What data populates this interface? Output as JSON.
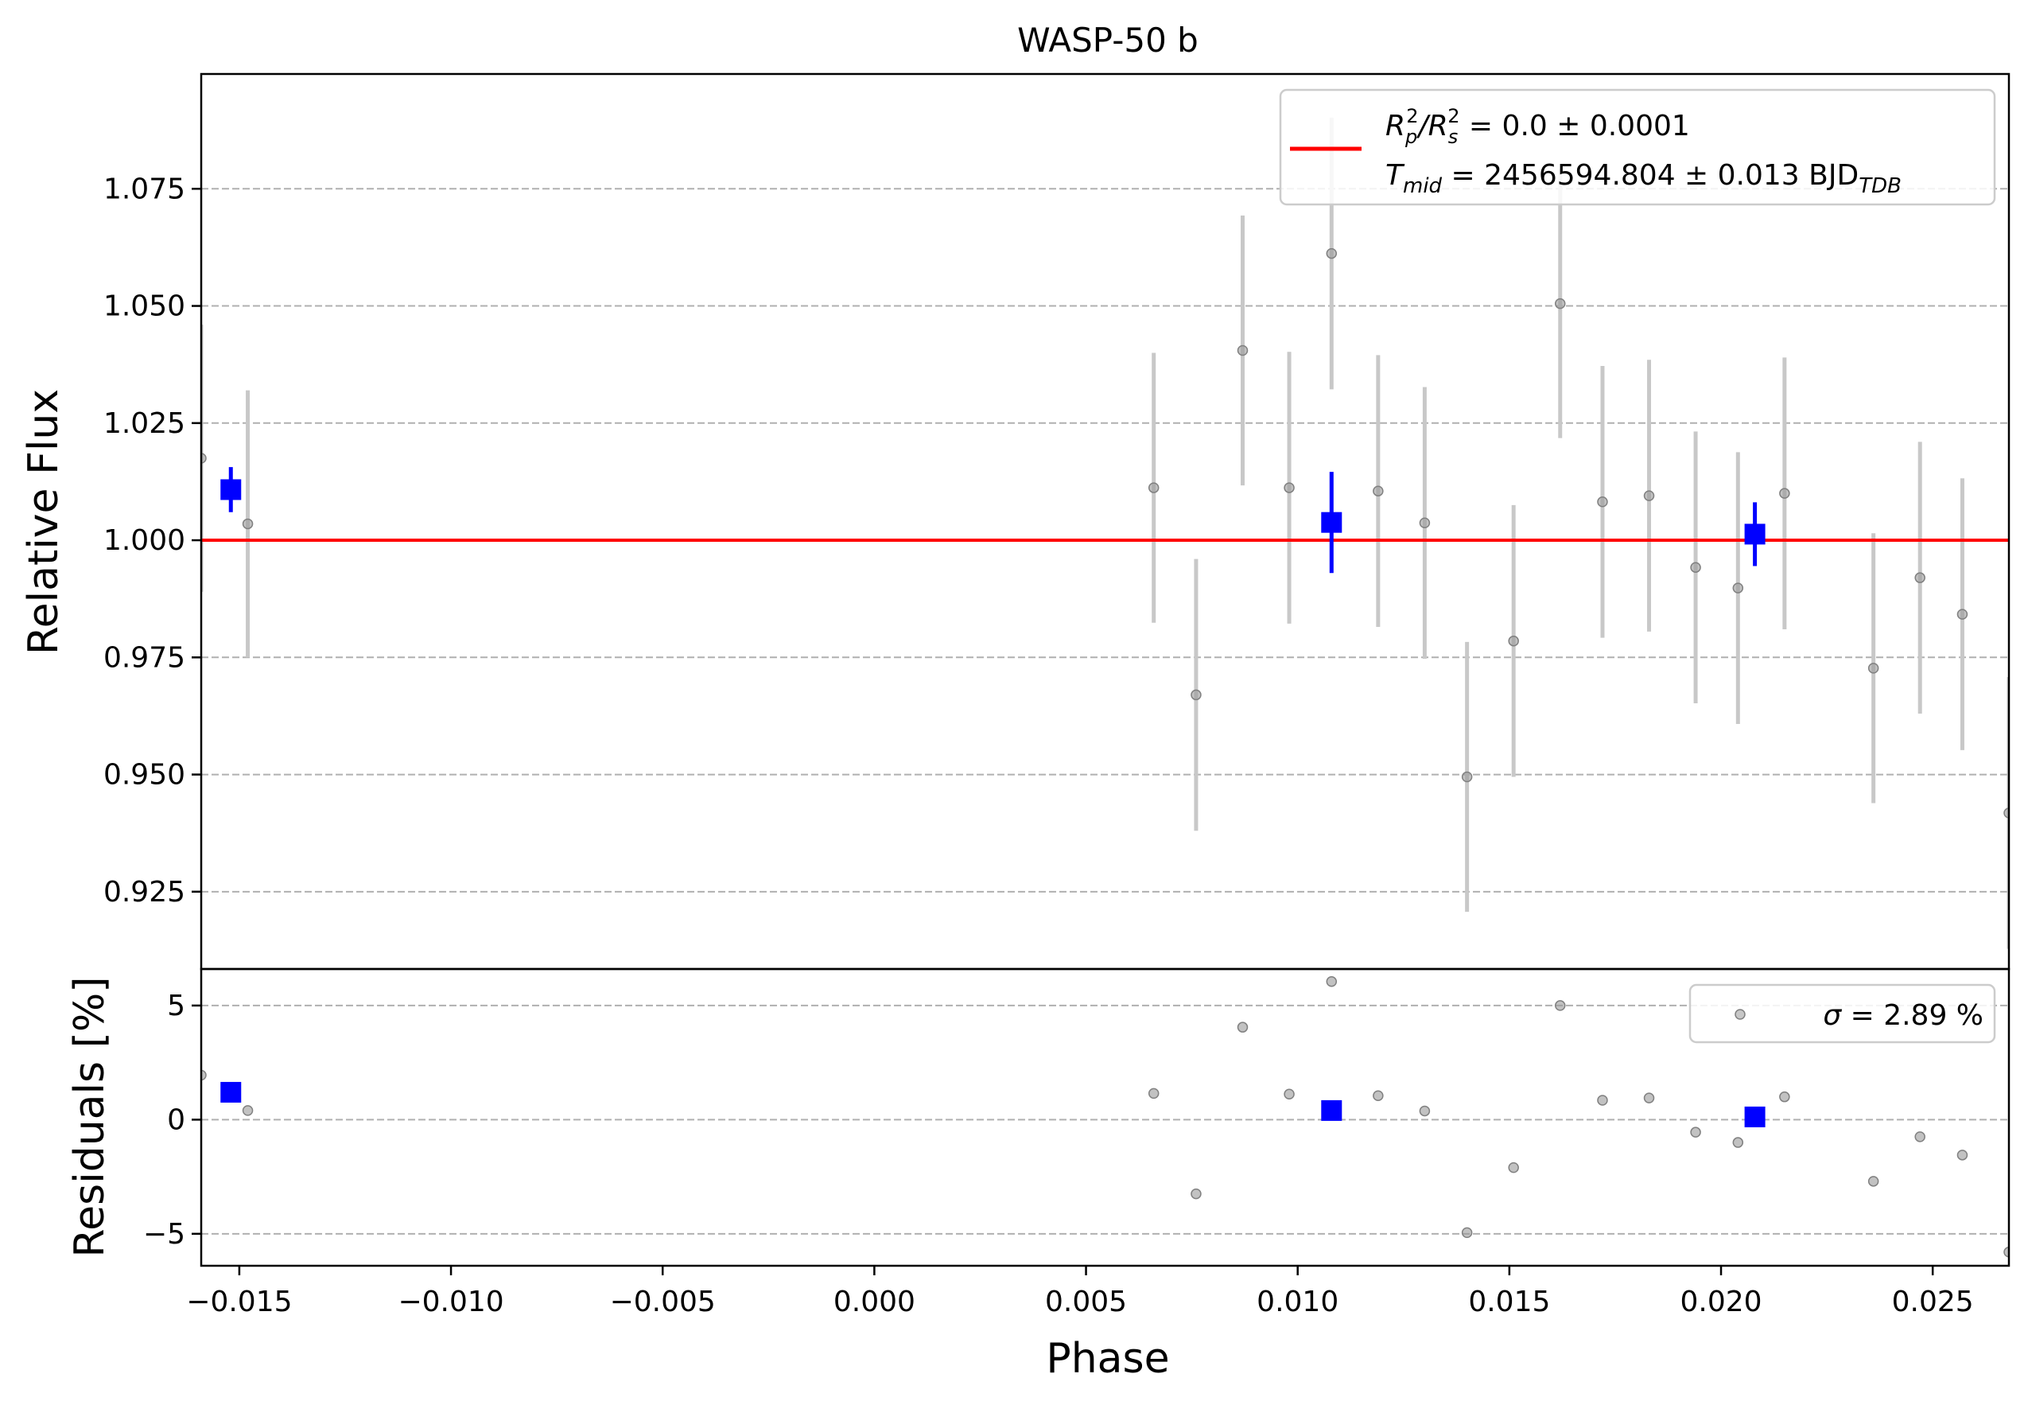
{
  "chart_data": [
    {
      "panel": "main",
      "type": "scatter",
      "title": "WASP-50 b",
      "ylabel": "Relative Flux",
      "xlim": [
        -0.0159,
        0.0268
      ],
      "ylim": [
        0.9085,
        1.0995
      ],
      "yticks": [
        "0.925",
        "0.950",
        "0.975",
        "1.000",
        "1.025",
        "1.050",
        "1.075"
      ],
      "grid": "horizontal dashed",
      "legend_position": "top-right",
      "model_line": {
        "y": 1.0,
        "color": "#ff0000",
        "legend": {
          "line1": {
            "base": "R",
            "sub1": "p",
            "sup1": "2",
            "sep": "/R",
            "sub2": "s",
            "sup2": "2",
            "rest": " = 0.0 ± 0.0001"
          },
          "line2": {
            "base": "T",
            "sub": "mid",
            "rest": " = 2456594.804 ± 0.013 BJD",
            "tail_sub": "TDB"
          }
        }
      },
      "series": [
        {
          "kind": "data",
          "color": "#999999",
          "points": [
            {
              "x": -0.0159,
              "y": 1.0175,
              "err": 0.0285
            },
            {
              "x": -0.0148,
              "y": 1.0035,
              "err": 0.0285
            },
            {
              "x": 0.0066,
              "y": 1.0112,
              "err": 0.0288
            },
            {
              "x": 0.0076,
              "y": 0.967,
              "err": 0.029
            },
            {
              "x": 0.0087,
              "y": 1.0405,
              "err": 0.0288
            },
            {
              "x": 0.0098,
              "y": 1.0112,
              "err": 0.029
            },
            {
              "x": 0.0108,
              "y": 1.0612,
              "err": 0.029
            },
            {
              "x": 0.0119,
              "y": 1.0105,
              "err": 0.029
            },
            {
              "x": 0.013,
              "y": 1.0037,
              "err": 0.029
            },
            {
              "x": 0.014,
              "y": 0.9495,
              "err": 0.0288
            },
            {
              "x": 0.0151,
              "y": 0.9785,
              "err": 0.029
            },
            {
              "x": 0.0162,
              "y": 1.0505,
              "err": 0.0287
            },
            {
              "x": 0.0172,
              "y": 1.0082,
              "err": 0.029
            },
            {
              "x": 0.0183,
              "y": 1.0095,
              "err": 0.029
            },
            {
              "x": 0.0194,
              "y": 0.9942,
              "err": 0.029
            },
            {
              "x": 0.0204,
              "y": 0.9898,
              "err": 0.029
            },
            {
              "x": 0.0215,
              "y": 1.01,
              "err": 0.029
            },
            {
              "x": 0.0236,
              "y": 0.9727,
              "err": 0.0288
            },
            {
              "x": 0.0247,
              "y": 0.992,
              "err": 0.029
            },
            {
              "x": 0.0257,
              "y": 0.9842,
              "err": 0.029
            },
            {
              "x": 0.0268,
              "y": 0.9418,
              "err": 0.029
            }
          ]
        },
        {
          "kind": "binned",
          "color": "#0000ff",
          "points": [
            {
              "x": -0.0152,
              "y": 1.0108,
              "err": 0.0048
            },
            {
              "x": 0.0108,
              "y": 1.0038,
              "err": 0.0108
            },
            {
              "x": 0.0208,
              "y": 1.0013,
              "err": 0.0068
            }
          ]
        }
      ]
    },
    {
      "panel": "residuals",
      "type": "scatter",
      "xlabel": "Phase",
      "ylabel": "Residuals [%]",
      "xlim": [
        -0.0159,
        0.0268
      ],
      "ylim": [
        -6.4,
        6.6
      ],
      "xticks": [
        "−0.015",
        "−0.010",
        "−0.005",
        "0.000",
        "0.005",
        "0.010",
        "0.015",
        "0.020",
        "0.025"
      ],
      "yticks": [
        "−5",
        "0",
        "5"
      ],
      "grid": "horizontal dashed",
      "legend_position": "top-right",
      "legend": {
        "sigma": "σ",
        "text": " = 2.89 %"
      },
      "series": [
        {
          "kind": "data",
          "color": "#999999",
          "points": [
            {
              "x": -0.0159,
              "y": 1.95
            },
            {
              "x": -0.0148,
              "y": 0.4
            },
            {
              "x": 0.0066,
              "y": 1.15
            },
            {
              "x": 0.0076,
              "y": -3.25
            },
            {
              "x": 0.0087,
              "y": 4.05
            },
            {
              "x": 0.0098,
              "y": 1.12
            },
            {
              "x": 0.0108,
              "y": 6.05
            },
            {
              "x": 0.0119,
              "y": 1.05
            },
            {
              "x": 0.013,
              "y": 0.38
            },
            {
              "x": 0.014,
              "y": -4.95
            },
            {
              "x": 0.0151,
              "y": -2.1
            },
            {
              "x": 0.0162,
              "y": 5.0
            },
            {
              "x": 0.0172,
              "y": 0.85
            },
            {
              "x": 0.0183,
              "y": 0.95
            },
            {
              "x": 0.0194,
              "y": -0.55
            },
            {
              "x": 0.0204,
              "y": -1.0
            },
            {
              "x": 0.0215,
              "y": 1.0
            },
            {
              "x": 0.0236,
              "y": -2.7
            },
            {
              "x": 0.0247,
              "y": -0.75
            },
            {
              "x": 0.0257,
              "y": -1.55
            },
            {
              "x": 0.0268,
              "y": -5.8
            }
          ]
        },
        {
          "kind": "binned",
          "color": "#0000ff",
          "points": [
            {
              "x": -0.0152,
              "y": 1.2
            },
            {
              "x": 0.0108,
              "y": 0.4
            },
            {
              "x": 0.0208,
              "y": 0.12
            }
          ]
        }
      ]
    }
  ]
}
